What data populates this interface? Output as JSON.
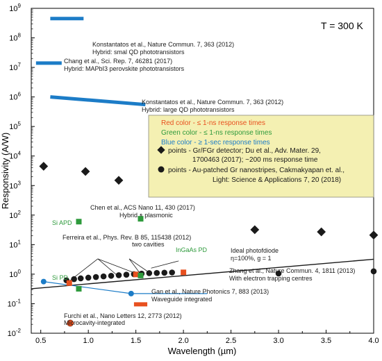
{
  "chart_data": {
    "type": "scatter",
    "xlabel": "Wavelength (µm)",
    "ylabel": "Responsivity (A/W)",
    "corner_label": "T = 300 K",
    "xlim": [
      0.4,
      4.0
    ],
    "ylim_log10": [
      -2,
      9
    ],
    "x_ticks": [
      "0.5",
      "1.0",
      "1.5",
      "2.0",
      "2.5",
      "3.0",
      "3.5",
      "4.0"
    ],
    "y_ticks": [
      {
        "base": "10",
        "exp": "-2"
      },
      {
        "base": "10",
        "exp": "-1"
      },
      {
        "base": "10",
        "exp": "0"
      },
      {
        "base": "10",
        "exp": "1"
      },
      {
        "base": "10",
        "exp": "2"
      },
      {
        "base": "10",
        "exp": "3"
      },
      {
        "base": "10",
        "exp": "4"
      },
      {
        "base": "10",
        "exp": "5"
      },
      {
        "base": "10",
        "exp": "6"
      },
      {
        "base": "10",
        "exp": "7"
      },
      {
        "base": "10",
        "exp": "8"
      },
      {
        "base": "10",
        "exp": "9"
      }
    ],
    "colors": {
      "red": "#e8501f",
      "green": "#2e9a3c",
      "blue": "#1c7cc7",
      "black": "#1a1a1a",
      "legend_bg": "#f4f0b2"
    },
    "legend": {
      "red_text": "Red color - ≤ 1-ns response times",
      "green_text": "Green color - ≤ 1-ns response times",
      "blue_text": "Blue color - ≥ 1-sec response times",
      "diamond_line1": "points - Gr/FGr detector; Du et al., Adv. Mater. 29,",
      "diamond_line2": "1700463 (2017); ~200 ms response time",
      "circle_line1": "points - Au-patched Gr nanostripes, Cakmakyapan et. al.,",
      "circle_line2": "Light: Science & Applications 7, 20 (2018)"
    },
    "hybrid_bars": [
      {
        "x1": 0.6,
        "x2": 0.95,
        "y1": 450000000.0,
        "y2": 450000000.0,
        "label1": "Konstantatos et al., Nature Commun. 7, 363 (2012)",
        "label2": "Hybrid: smal QD phototransistors"
      },
      {
        "x1": 0.45,
        "x2": 0.72,
        "y1": 14000000.0,
        "y2": 14000000.0,
        "label1": "Chang et al., Sci. Rep. 7, 46281 (2017)",
        "label2": "Hybrid: MAPbI3 perovskite phototransistors"
      },
      {
        "x1": 0.6,
        "x2": 1.6,
        "y1": 1000000.0,
        "y2": 550000.0,
        "label1": "Konstantatos et al., Nature Commun. 7, 363 (2012)",
        "label2": "Hybrid: large QD phototransistors"
      }
    ],
    "diamonds": [
      {
        "x": 0.53,
        "y": 4500
      },
      {
        "x": 0.97,
        "y": 3000
      },
      {
        "x": 1.32,
        "y": 1500
      },
      {
        "x": 1.85,
        "y": 700
      },
      {
        "x": 2.75,
        "y": 32
      },
      {
        "x": 3.45,
        "y": 27
      },
      {
        "x": 4.0,
        "y": 21
      }
    ],
    "circles": [
      {
        "x": 0.77,
        "y": 0.62
      },
      {
        "x": 0.85,
        "y": 0.68
      },
      {
        "x": 0.92,
        "y": 0.72
      },
      {
        "x": 1.0,
        "y": 0.76
      },
      {
        "x": 1.08,
        "y": 0.8
      },
      {
        "x": 1.16,
        "y": 0.84
      },
      {
        "x": 1.24,
        "y": 0.88
      },
      {
        "x": 1.32,
        "y": 0.92
      },
      {
        "x": 1.4,
        "y": 0.96
      },
      {
        "x": 1.48,
        "y": 1.0
      },
      {
        "x": 1.56,
        "y": 1.04
      },
      {
        "x": 1.64,
        "y": 1.08
      },
      {
        "x": 1.72,
        "y": 1.1
      },
      {
        "x": 1.8,
        "y": 1.12
      },
      {
        "x": 1.88,
        "y": 1.14
      },
      {
        "x": 3.0,
        "y": 1.05
      },
      {
        "x": 4.0,
        "y": 1.25
      }
    ],
    "red_squares": [
      {
        "x": 0.8,
        "y": 0.5
      },
      {
        "x": 1.5,
        "y": 0.98
      },
      {
        "x": 2.0,
        "y": 1.15
      }
    ],
    "green_squares": [
      {
        "x": 0.9,
        "y": 60
      },
      {
        "x": 1.55,
        "y": 75
      },
      {
        "x": 0.9,
        "y": 0.32
      },
      {
        "x": 1.55,
        "y": 0.9
      }
    ],
    "red_bar": {
      "x1": 1.48,
      "x2": 1.62,
      "y": 0.095,
      "label1": "Gan et al., Nature Photonics 7, 883 (2013)",
      "label2": "Waveguide integrated"
    },
    "red_circle": {
      "x": 0.81,
      "y": 0.022,
      "label1": "Furchi et al., Nano Letters 12, 2773 (2012)",
      "label2": "Microcavity-integrated"
    },
    "blue_line": {
      "points": [
        {
          "x": 0.53,
          "y": 0.56
        },
        {
          "x": 1.45,
          "y": 0.22
        },
        {
          "x": 2.25,
          "y": 0.22
        }
      ],
      "label1": "Zhang et al., Nature Commun. 4, 1811 (2013)",
      "label2": "With electron trapping centres"
    },
    "ideal_line": {
      "x": [
        0.4,
        4.0
      ],
      "y": [
        0.32,
        3.2
      ],
      "label1": "Ideal photofdiode",
      "label2": "η=100%, g = 1"
    },
    "annotations": {
      "chen1": "Chen et al., ACS Nano 11, 430 (2017)",
      "chen2": "Hybrid + plasmonic",
      "si_apd": "Si APD",
      "ferreira1": "Ferreira et al., Phys. Rev. B 85, 115438 (2012)",
      "ferreira2": "two cavities",
      "ingaas": "InGaAs PD",
      "si_pd": "Si PD"
    }
  }
}
